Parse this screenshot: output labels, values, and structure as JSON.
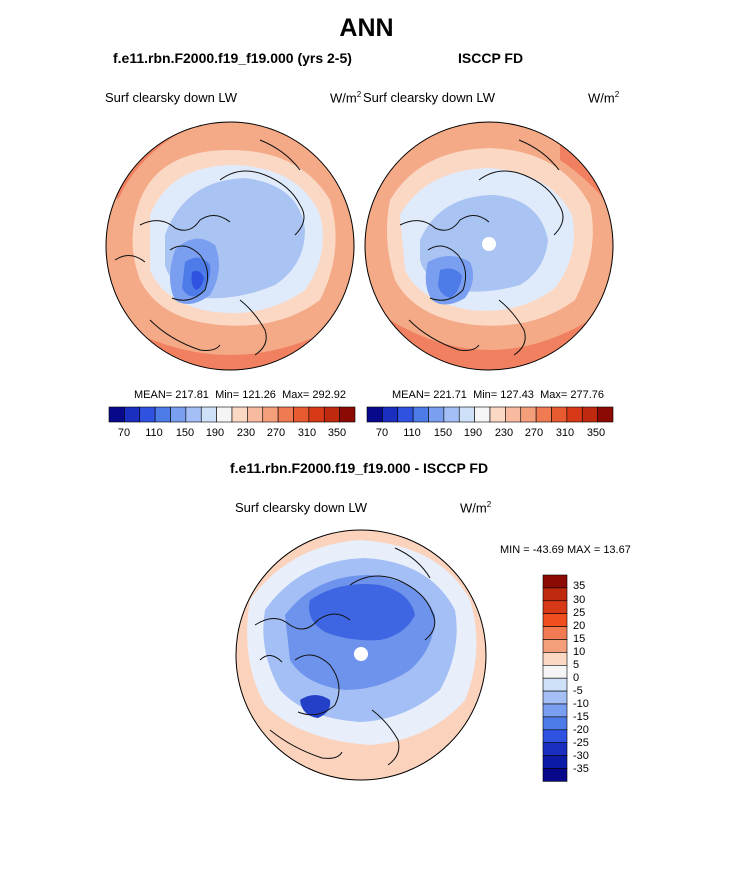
{
  "main_title": "ANN",
  "panel_left": {
    "case": "f.e11.rbn.F2000.f19_f19.000 (yrs 2-5)",
    "variable": "Surf clearsky down LW",
    "units": "W/m",
    "units_exp": "2",
    "stats": {
      "mean_label": "MEAN=",
      "mean": "217.81",
      "min_label": "Min=",
      "min": "121.26",
      "max_label": "Max=",
      "max": "292.92"
    }
  },
  "panel_right": {
    "case": "ISCCP FD",
    "variable": "Surf clearsky down LW",
    "units": "W/m",
    "units_exp": "2",
    "stats": {
      "mean_label": "MEAN=",
      "mean": "221.71",
      "min_label": "Min=",
      "min": "127.43",
      "max_label": "Max=",
      "max": "277.76"
    }
  },
  "colorbar_top": {
    "labels": [
      "70",
      "110",
      "150",
      "190",
      "230",
      "270",
      "310",
      "350"
    ],
    "colors": [
      "#08088a",
      "#1a2fc0",
      "#2f52e0",
      "#4d7be8",
      "#7a9ef0",
      "#a3bff5",
      "#cfe0f9",
      "#f5f5f5",
      "#fbd8c4",
      "#f8bba0",
      "#f59e7a",
      "#f07a52",
      "#e85a30",
      "#d83a18",
      "#bf2a0e",
      "#8c0a04"
    ]
  },
  "panel_diff": {
    "case": "f.e11.rbn.F2000.f19_f19.000 - ISCCP FD",
    "variable": "Surf clearsky down LW",
    "units": "W/m",
    "units_exp": "2",
    "minmax": "MIN = -43.69 MAX =  13.67"
  },
  "colorbar_diff": {
    "labels": [
      "35",
      "30",
      "25",
      "20",
      "15",
      "10",
      "5",
      "0",
      "-5",
      "-10",
      "-15",
      "-20",
      "-25",
      "-30",
      "-35"
    ],
    "colors": [
      "#8c0a04",
      "#bf2a0e",
      "#d83a18",
      "#f04e1e",
      "#f07a52",
      "#f59e7a",
      "#fbd8c4",
      "#f5f5f5",
      "#cfe0f9",
      "#a3bff5",
      "#7a9ef0",
      "#4d7be8",
      "#2f52e0",
      "#1a2fc0",
      "#0c1aa8",
      "#08088a"
    ]
  },
  "map_colors": {
    "ocean_warm": "#f4a987",
    "warm_outer": "#f08060",
    "warm_light": "#fbd8c4",
    "cool_light": "#dfeafb",
    "cool_mid": "#a9c3f3",
    "cool_deep": "#7a9ef0",
    "cool_darker": "#4d7be8",
    "cool_darkest": "#2f52e0",
    "diff_ocean": "#fbd3bd",
    "diff_neutral": "#e8eefa",
    "diff_blue1": "#a3bff5",
    "diff_blue2": "#6e93ec",
    "diff_blue3": "#3f66e2",
    "diff_blue4": "#2440c8",
    "pole_hole": "#ffffff",
    "coast": "#111111"
  }
}
